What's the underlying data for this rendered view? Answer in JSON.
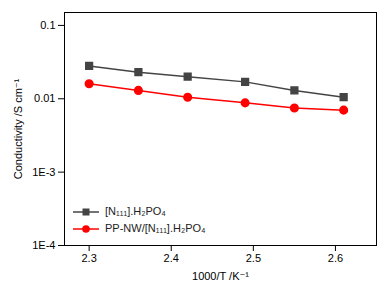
{
  "chart_data": {
    "type": "line",
    "log": "y",
    "grid": false,
    "legend": "lower left",
    "xlabel": "1000/T /K⁻¹",
    "ylabel": "Conductivity /S cm⁻¹",
    "x": [
      2.3,
      2.36,
      2.42,
      2.49,
      2.55,
      2.61
    ],
    "series": [
      {
        "name": "[N₁₁₁].H₂PO₄",
        "color": "#444444",
        "marker": "square",
        "values": [
          0.028,
          0.023,
          0.02,
          0.017,
          0.013,
          0.0105
        ]
      },
      {
        "name": "PP-NW/[N₁₁₁].H₂PO₄",
        "color": "#ff0000",
        "marker": "circle",
        "values": [
          0.016,
          0.013,
          0.0105,
          0.0088,
          0.0075,
          0.007
        ]
      }
    ],
    "xlim": [
      2.27,
      2.65
    ],
    "ylim": [
      0.0001,
      0.15
    ],
    "xticks": [
      2.3,
      2.4,
      2.5,
      2.6
    ],
    "yticks": [
      {
        "value": 0.0001,
        "label": "1E-4"
      },
      {
        "value": 0.001,
        "label": "1E-3"
      },
      0.01,
      0.1
    ]
  }
}
